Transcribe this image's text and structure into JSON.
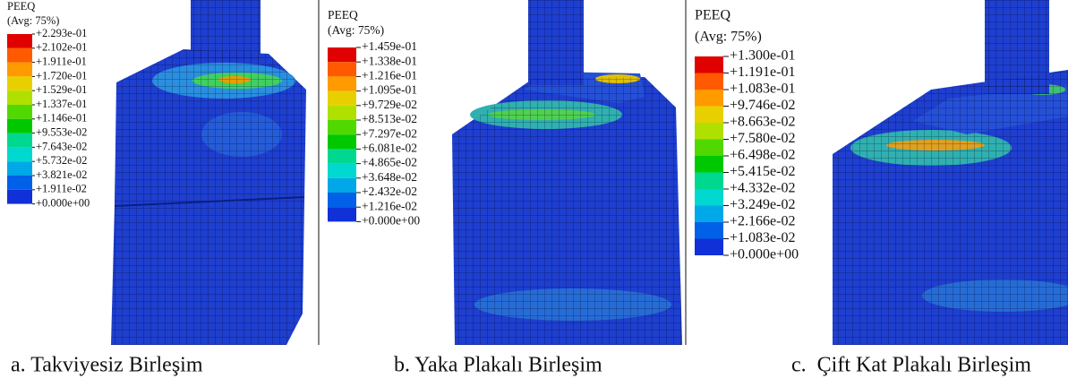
{
  "panels": [
    {
      "title": "PEEQ",
      "subtitle": "(Avg: 75%)",
      "labels": [
        "+2.293e-01",
        "+2.102e-01",
        "+1.911e-01",
        "+1.720e-01",
        "+1.529e-01",
        "+1.337e-01",
        "+1.146e-01",
        "+9.553e-02",
        "+7.643e-02",
        "+5.732e-02",
        "+3.821e-02",
        "+1.911e-02",
        "+0.000e+00"
      ],
      "caption": "a. Takviyesiz Birleşim"
    },
    {
      "title": "PEEQ",
      "subtitle": "(Avg: 75%)",
      "labels": [
        "+1.459e-01",
        "+1.338e-01",
        "+1.216e-01",
        "+1.095e-01",
        "+9.729e-02",
        "+8.513e-02",
        "+7.297e-02",
        "+6.081e-02",
        "+4.865e-02",
        "+3.648e-02",
        "+2.432e-02",
        "+1.216e-02",
        "+0.000e+00"
      ],
      "caption": "b. Yaka Plakalı Birleşim"
    },
    {
      "title": "PEEQ",
      "subtitle": "(Avg: 75%)",
      "labels": [
        "+1.300e-01",
        "+1.191e-01",
        "+1.083e-01",
        "+9.746e-02",
        "+8.663e-02",
        "+7.580e-02",
        "+6.498e-02",
        "+5.415e-02",
        "+4.332e-02",
        "+3.249e-02",
        "+2.166e-02",
        "+1.083e-02",
        "+0.000e+00"
      ],
      "caption": "c.  Çift Kat Plakalı Birleşim"
    }
  ]
}
